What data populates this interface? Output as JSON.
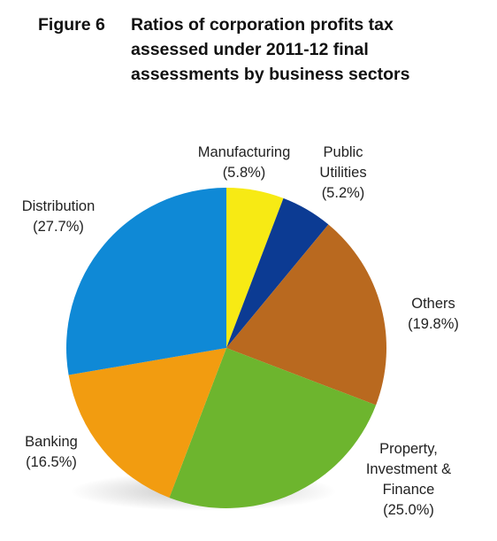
{
  "chart_data": {
    "type": "pie",
    "figure_label": "Figure 6",
    "title": "Ratios of corporation profits tax assessed under 2011-12 final assessments by business sectors",
    "categories": [
      "Manufacturing",
      "Public Utilities",
      "Others",
      "Property, Investment & Finance",
      "Banking",
      "Distribution"
    ],
    "values": [
      5.8,
      5.2,
      19.8,
      25.0,
      16.5,
      27.7
    ],
    "value_labels": [
      "(5.8%)",
      "(5.2%)",
      "(19.8%)",
      "(25.0%)",
      "(16.5%)",
      "(27.7%)"
    ],
    "colors": [
      "#f7ea14",
      "#0c3b93",
      "#b9691f",
      "#6db52e",
      "#f29c10",
      "#0f89d6"
    ]
  }
}
